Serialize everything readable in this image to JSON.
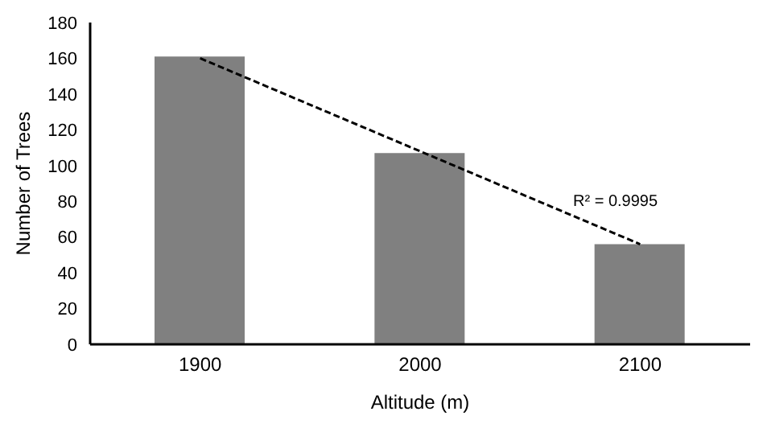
{
  "chart_data": {
    "type": "bar",
    "xlabel": "Altitude (m)",
    "ylabel": "Number of Trees",
    "categories": [
      "1900",
      "2000",
      "2100"
    ],
    "series": [
      {
        "color": "#808080",
        "values": [
          161,
          107,
          56
        ]
      },
      {
        "type": "line",
        "color": "#000000",
        "values": [
          160,
          null,
          56
        ],
        "line_style": "dashed",
        "marker": "none"
      }
    ],
    "ylim": [
      0,
      180
    ],
    "yticks": [
      0,
      20,
      40,
      60,
      80,
      100,
      120,
      140,
      160,
      180
    ],
    "grid": false,
    "legend": false,
    "annotations": [
      "R² = 0.9995"
    ]
  }
}
